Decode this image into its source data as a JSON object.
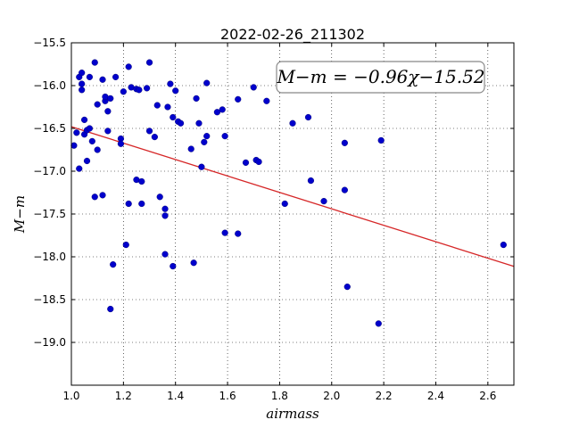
{
  "chart_data": {
    "type": "scatter",
    "title": "2022-02-26_211302",
    "xlabel": "airmass",
    "ylabel": "M−m",
    "xlim": [
      1.0,
      2.7
    ],
    "ylim": [
      -19.5,
      -15.5
    ],
    "y_inverted": true,
    "grid": true,
    "x_ticks": [
      "1.0",
      "1.2",
      "1.4",
      "1.6",
      "1.8",
      "2.0",
      "2.2",
      "2.4",
      "2.6"
    ],
    "y_ticks": [
      "−15.5",
      "−16.0",
      "−16.5",
      "−17.0",
      "−17.5",
      "−18.0",
      "−18.5",
      "−19.0"
    ],
    "annotation": "M−m = −0.96χ−15.52",
    "fit": {
      "slope": -0.96,
      "intercept": -15.52,
      "color": "#d62728"
    },
    "point_color": "#0000cc",
    "points": [
      [
        1.01,
        -16.7
      ],
      [
        1.02,
        -16.55
      ],
      [
        1.03,
        -15.9
      ],
      [
        1.03,
        -16.97
      ],
      [
        1.04,
        -15.85
      ],
      [
        1.04,
        -16.05
      ],
      [
        1.04,
        -15.98
      ],
      [
        1.05,
        -16.4
      ],
      [
        1.05,
        -16.57
      ],
      [
        1.06,
        -16.88
      ],
      [
        1.06,
        -16.52
      ],
      [
        1.07,
        -15.9
      ],
      [
        1.07,
        -16.5
      ],
      [
        1.08,
        -16.65
      ],
      [
        1.09,
        -17.3
      ],
      [
        1.09,
        -15.73
      ],
      [
        1.1,
        -16.22
      ],
      [
        1.1,
        -16.75
      ],
      [
        1.12,
        -17.28
      ],
      [
        1.12,
        -15.93
      ],
      [
        1.13,
        -16.18
      ],
      [
        1.13,
        -16.13
      ],
      [
        1.14,
        -16.3
      ],
      [
        1.14,
        -16.53
      ],
      [
        1.15,
        -16.15
      ],
      [
        1.15,
        -18.61
      ],
      [
        1.16,
        -18.09
      ],
      [
        1.17,
        -15.9
      ],
      [
        1.19,
        -16.62
      ],
      [
        1.19,
        -16.68
      ],
      [
        1.2,
        -16.07
      ],
      [
        1.21,
        -17.86
      ],
      [
        1.22,
        -17.38
      ],
      [
        1.22,
        -15.78
      ],
      [
        1.23,
        -16.02
      ],
      [
        1.25,
        -16.04
      ],
      [
        1.25,
        -17.1
      ],
      [
        1.26,
        -16.05
      ],
      [
        1.27,
        -17.12
      ],
      [
        1.27,
        -17.38
      ],
      [
        1.29,
        -16.03
      ],
      [
        1.3,
        -15.73
      ],
      [
        1.3,
        -16.53
      ],
      [
        1.32,
        -16.6
      ],
      [
        1.33,
        -16.23
      ],
      [
        1.34,
        -17.3
      ],
      [
        1.36,
        -17.44
      ],
      [
        1.36,
        -17.52
      ],
      [
        1.36,
        -17.97
      ],
      [
        1.37,
        -16.25
      ],
      [
        1.38,
        -15.98
      ],
      [
        1.39,
        -18.11
      ],
      [
        1.39,
        -16.37
      ],
      [
        1.4,
        -16.06
      ],
      [
        1.41,
        -16.42
      ],
      [
        1.42,
        -16.44
      ],
      [
        1.46,
        -16.74
      ],
      [
        1.47,
        -18.07
      ],
      [
        1.48,
        -16.15
      ],
      [
        1.49,
        -16.44
      ],
      [
        1.5,
        -16.95
      ],
      [
        1.51,
        -16.66
      ],
      [
        1.52,
        -16.59
      ],
      [
        1.52,
        -15.97
      ],
      [
        1.56,
        -16.31
      ],
      [
        1.58,
        -16.28
      ],
      [
        1.59,
        -17.72
      ],
      [
        1.59,
        -16.59
      ],
      [
        1.64,
        -17.73
      ],
      [
        1.64,
        -16.16
      ],
      [
        1.67,
        -16.9
      ],
      [
        1.7,
        -16.02
      ],
      [
        1.71,
        -16.87
      ],
      [
        1.72,
        -16.89
      ],
      [
        1.75,
        -16.18
      ],
      [
        1.82,
        -17.38
      ],
      [
        1.85,
        -16.44
      ],
      [
        1.91,
        -16.37
      ],
      [
        1.92,
        -17.11
      ],
      [
        1.97,
        -17.35
      ],
      [
        2.05,
        -16.67
      ],
      [
        2.05,
        -17.22
      ],
      [
        2.06,
        -18.35
      ],
      [
        2.18,
        -18.78
      ],
      [
        2.19,
        -16.64
      ],
      [
        2.66,
        -17.86
      ]
    ]
  }
}
